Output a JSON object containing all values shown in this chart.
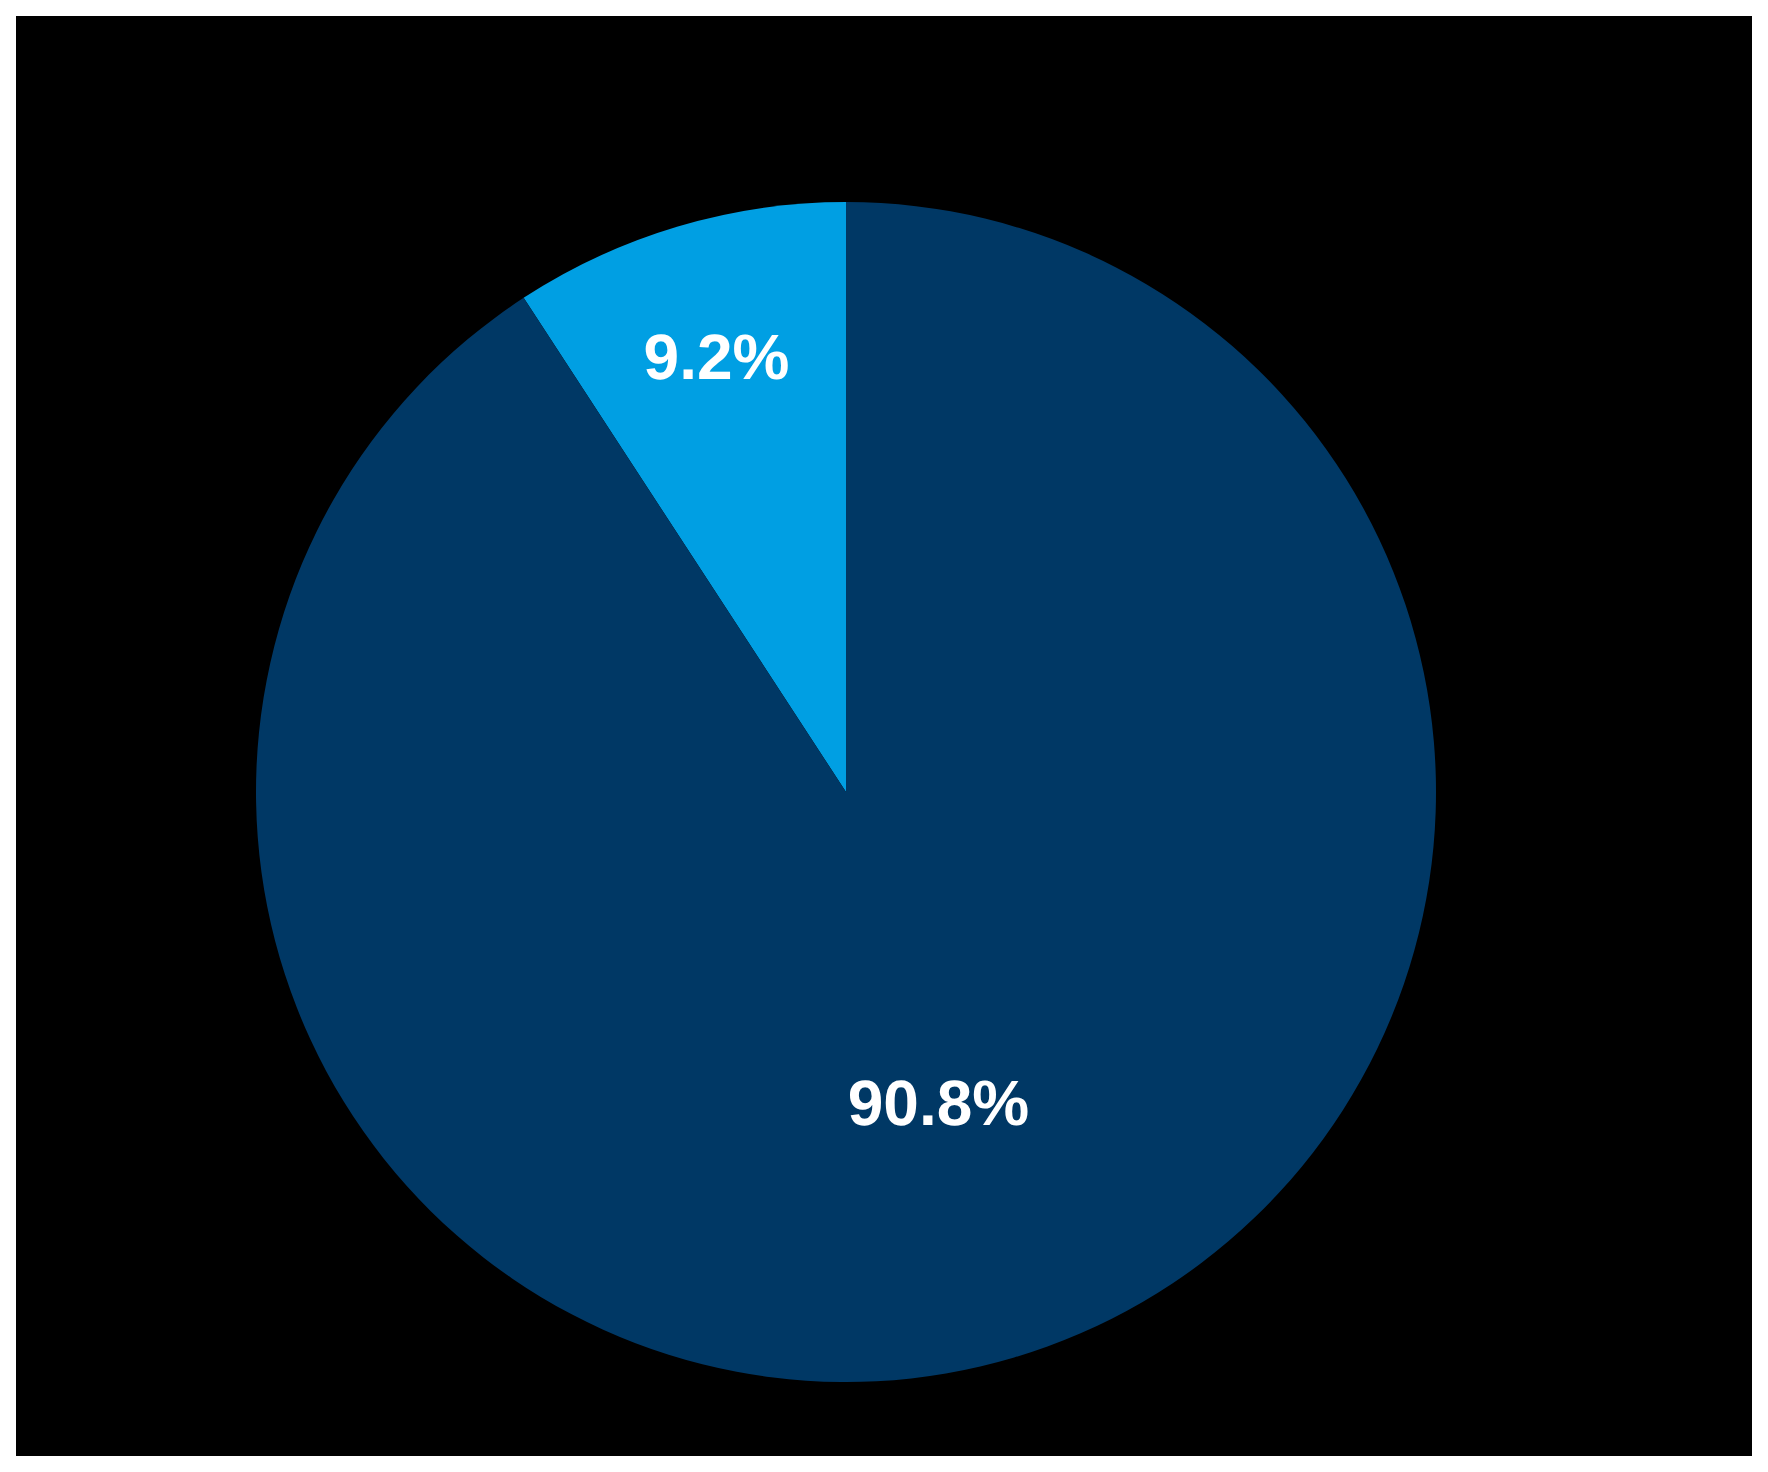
{
  "chart_data": {
    "type": "pie",
    "categories": [
      null,
      null
    ],
    "values": [
      9.2,
      90.8
    ],
    "colors": [
      "#009fe3",
      "#003865"
    ],
    "value_labels": [
      "9.2%",
      "90.8%"
    ]
  }
}
